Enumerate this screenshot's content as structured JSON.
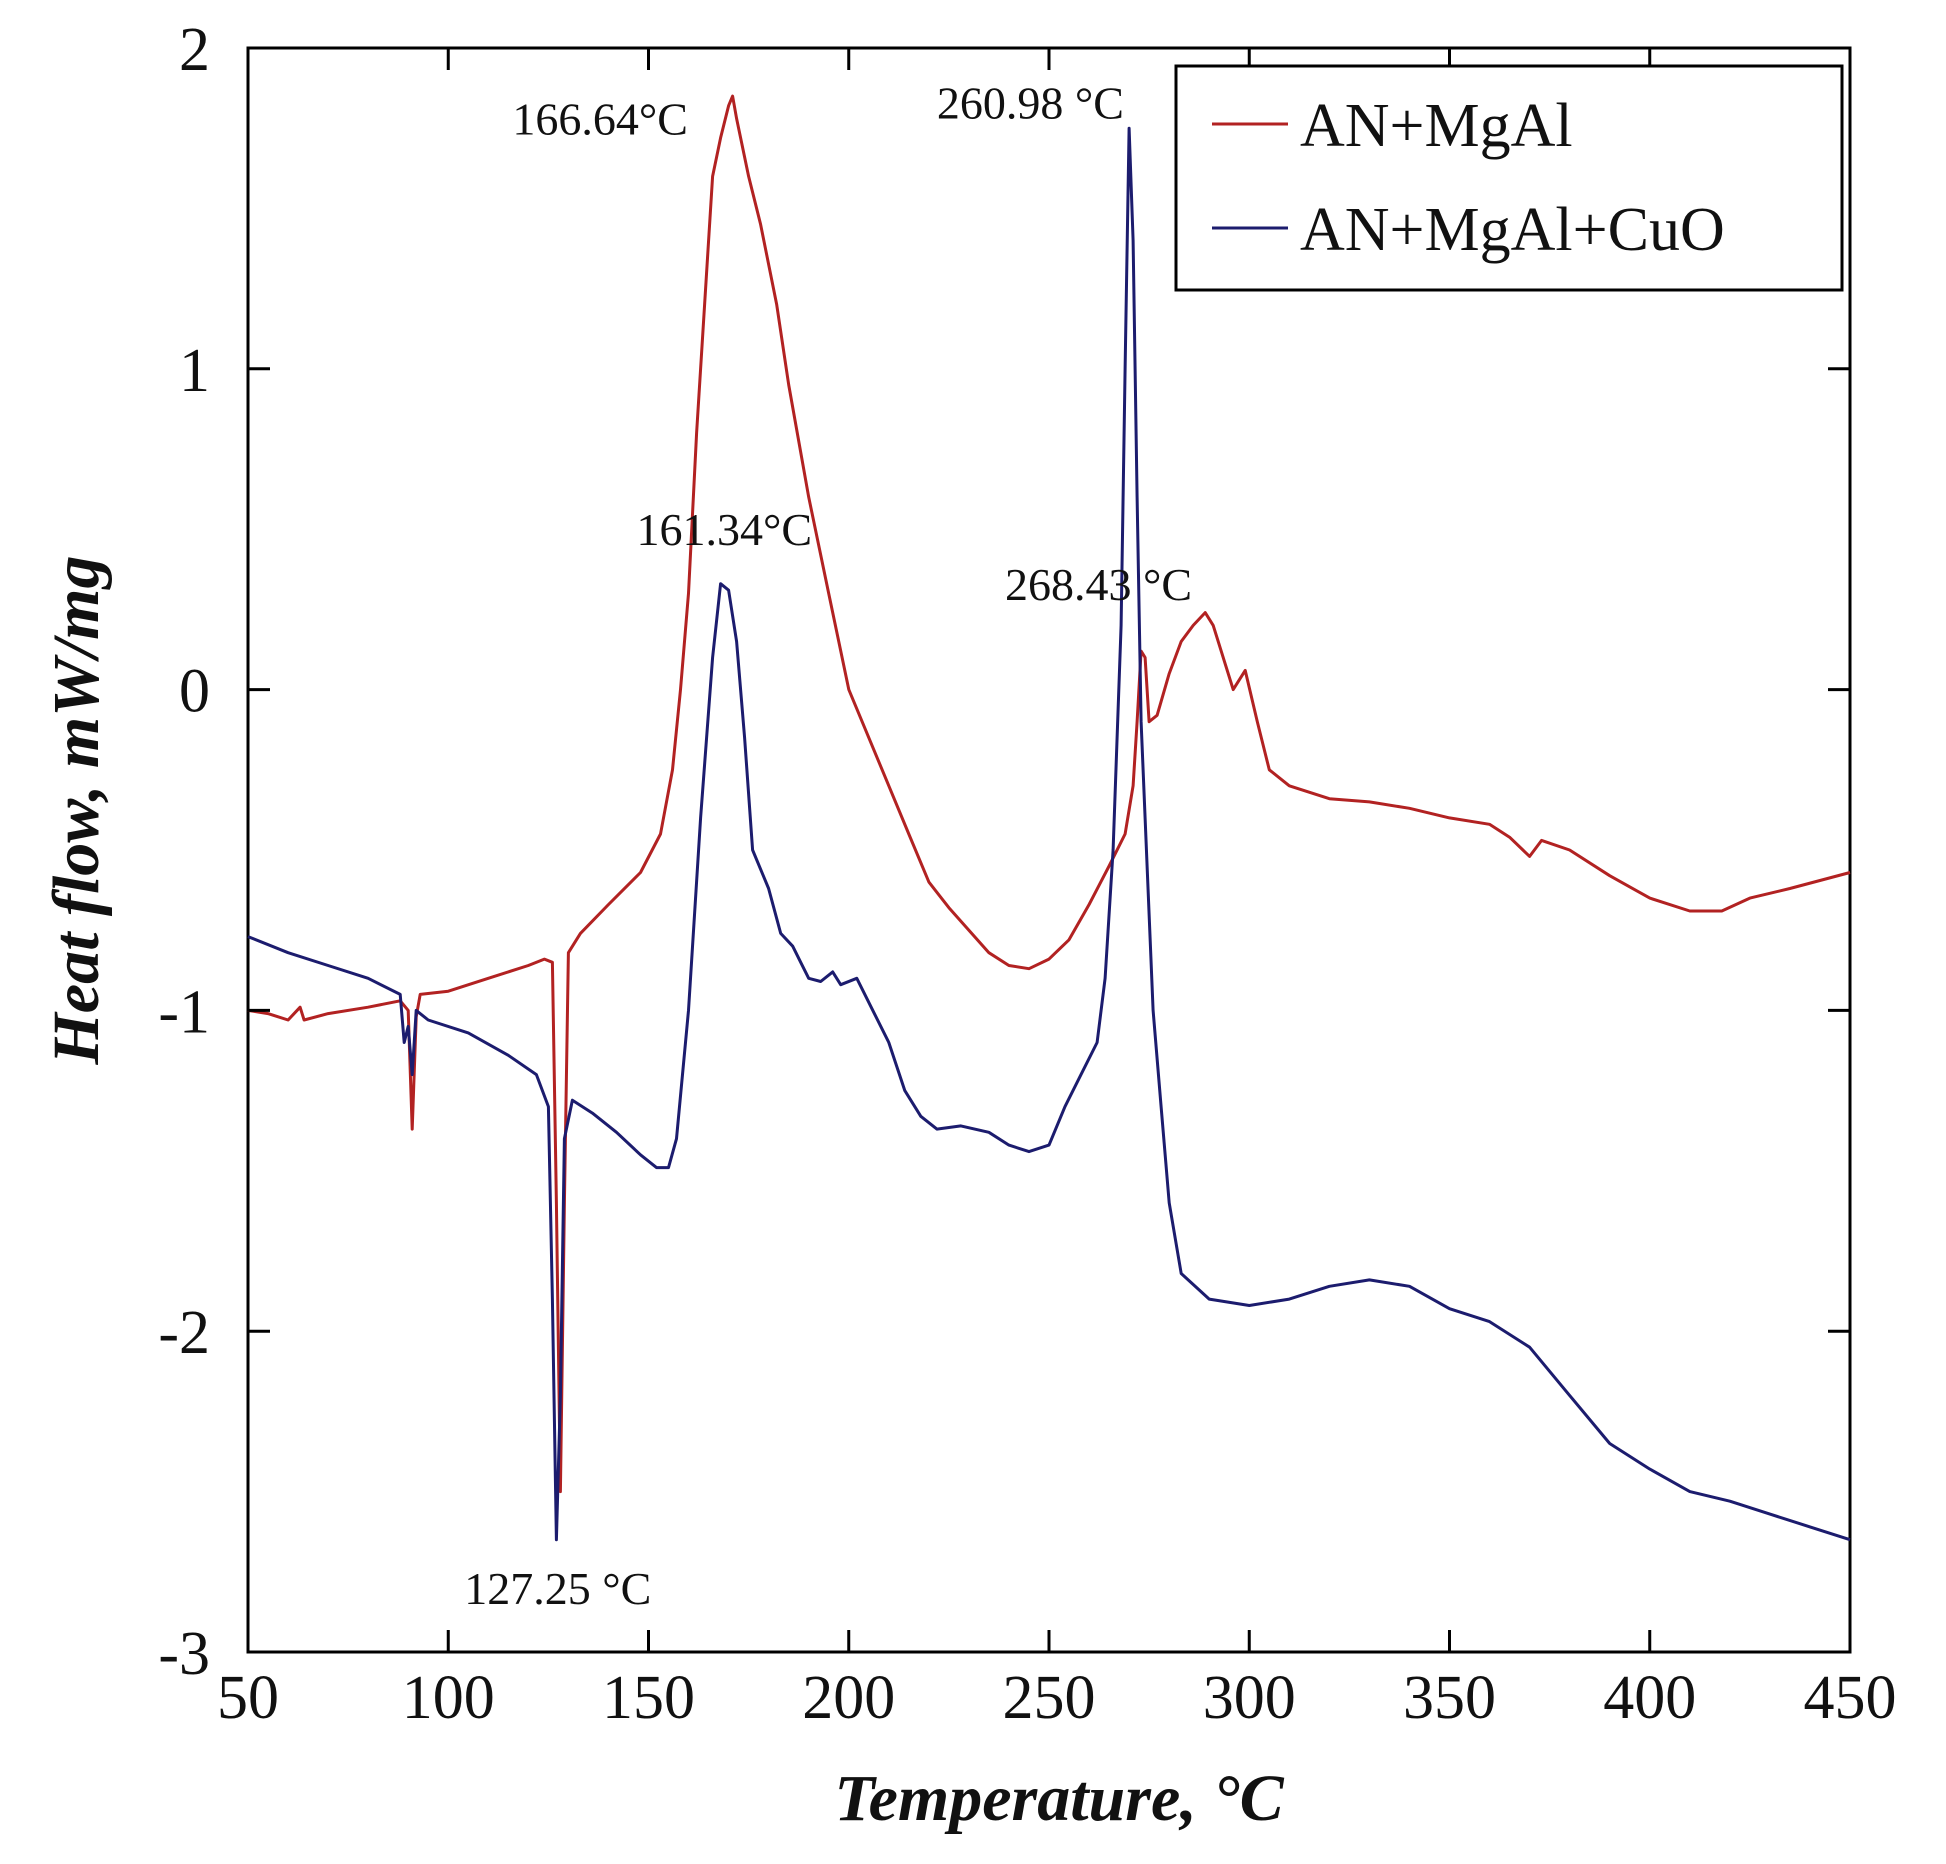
{
  "chart_data": {
    "type": "line",
    "xlabel": "Temperature, °C",
    "ylabel": "Heat flow, mW/mg",
    "xlim": [
      50,
      450
    ],
    "ylim": [
      -3,
      2
    ],
    "xticks": [
      50,
      100,
      150,
      200,
      250,
      300,
      350,
      400,
      450
    ],
    "yticks": [
      -3,
      -2,
      -1,
      0,
      1,
      2
    ],
    "xtick_labels": [
      "50",
      "100",
      "150",
      "200",
      "250",
      "300",
      "350",
      "400",
      "450"
    ],
    "ytick_labels": [
      "-3",
      "-2",
      "-1",
      "0",
      "1",
      "2"
    ],
    "legend_position": "top-right",
    "grid": false,
    "series": [
      {
        "name": "AN+MgAl",
        "color": "#b22222",
        "points": [
          [
            50,
            -1.0
          ],
          [
            55,
            -1.01
          ],
          [
            60,
            -1.03
          ],
          [
            63,
            -0.99
          ],
          [
            64,
            -1.03
          ],
          [
            70,
            -1.01
          ],
          [
            80,
            -0.99
          ],
          [
            88,
            -0.97
          ],
          [
            90,
            -1.0
          ],
          [
            91,
            -1.37
          ],
          [
            92,
            -1.02
          ],
          [
            93,
            -0.95
          ],
          [
            100,
            -0.94
          ],
          [
            110,
            -0.9
          ],
          [
            120,
            -0.86
          ],
          [
            124,
            -0.84
          ],
          [
            126,
            -0.85
          ],
          [
            127,
            -1.6
          ],
          [
            128,
            -2.5
          ],
          [
            129,
            -1.6
          ],
          [
            130,
            -0.82
          ],
          [
            133,
            -0.76
          ],
          [
            140,
            -0.67
          ],
          [
            148,
            -0.57
          ],
          [
            153,
            -0.45
          ],
          [
            156,
            -0.25
          ],
          [
            158,
            0.0
          ],
          [
            160,
            0.3
          ],
          [
            162,
            0.8
          ],
          [
            164,
            1.2
          ],
          [
            166,
            1.6
          ],
          [
            168,
            1.72
          ],
          [
            170,
            1.82
          ],
          [
            171,
            1.85
          ],
          [
            172,
            1.78
          ],
          [
            175,
            1.6
          ],
          [
            178,
            1.45
          ],
          [
            182,
            1.2
          ],
          [
            185,
            0.95
          ],
          [
            190,
            0.6
          ],
          [
            195,
            0.3
          ],
          [
            200,
            0.0
          ],
          [
            205,
            -0.15
          ],
          [
            210,
            -0.3
          ],
          [
            215,
            -0.45
          ],
          [
            220,
            -0.6
          ],
          [
            225,
            -0.68
          ],
          [
            230,
            -0.75
          ],
          [
            235,
            -0.82
          ],
          [
            240,
            -0.86
          ],
          [
            245,
            -0.87
          ],
          [
            250,
            -0.84
          ],
          [
            255,
            -0.78
          ],
          [
            260,
            -0.67
          ],
          [
            265,
            -0.55
          ],
          [
            269,
            -0.45
          ],
          [
            271,
            -0.3
          ],
          [
            272,
            -0.1
          ],
          [
            273,
            0.12
          ],
          [
            274,
            0.1
          ],
          [
            275,
            -0.1
          ],
          [
            277,
            -0.08
          ],
          [
            280,
            0.05
          ],
          [
            283,
            0.15
          ],
          [
            286,
            0.2
          ],
          [
            289,
            0.24
          ],
          [
            291,
            0.2
          ],
          [
            294,
            0.08
          ],
          [
            296,
            0.0
          ],
          [
            299,
            0.06
          ],
          [
            302,
            -0.1
          ],
          [
            305,
            -0.25
          ],
          [
            310,
            -0.3
          ],
          [
            320,
            -0.34
          ],
          [
            330,
            -0.35
          ],
          [
            340,
            -0.37
          ],
          [
            350,
            -0.4
          ],
          [
            360,
            -0.42
          ],
          [
            365,
            -0.46
          ],
          [
            370,
            -0.52
          ],
          [
            373,
            -0.47
          ],
          [
            380,
            -0.5
          ],
          [
            390,
            -0.58
          ],
          [
            400,
            -0.65
          ],
          [
            410,
            -0.69
          ],
          [
            418,
            -0.69
          ],
          [
            425,
            -0.65
          ],
          [
            435,
            -0.62
          ],
          [
            450,
            -0.57
          ]
        ]
      },
      {
        "name": "AN+MgAl+CuO",
        "color": "#1c1c6e",
        "points": [
          [
            50,
            -0.77
          ],
          [
            60,
            -0.82
          ],
          [
            70,
            -0.86
          ],
          [
            80,
            -0.9
          ],
          [
            88,
            -0.95
          ],
          [
            89,
            -1.1
          ],
          [
            90,
            -1.05
          ],
          [
            91,
            -1.2
          ],
          [
            92,
            -1.0
          ],
          [
            95,
            -1.03
          ],
          [
            105,
            -1.07
          ],
          [
            115,
            -1.14
          ],
          [
            122,
            -1.2
          ],
          [
            125,
            -1.3
          ],
          [
            126,
            -1.9
          ],
          [
            127,
            -2.65
          ],
          [
            128,
            -2.2
          ],
          [
            129,
            -1.4
          ],
          [
            131,
            -1.28
          ],
          [
            136,
            -1.32
          ],
          [
            142,
            -1.38
          ],
          [
            148,
            -1.45
          ],
          [
            152,
            -1.49
          ],
          [
            155,
            -1.49
          ],
          [
            157,
            -1.4
          ],
          [
            160,
            -1.0
          ],
          [
            163,
            -0.4
          ],
          [
            166,
            0.1
          ],
          [
            168,
            0.33
          ],
          [
            170,
            0.31
          ],
          [
            172,
            0.15
          ],
          [
            174,
            -0.15
          ],
          [
            176,
            -0.5
          ],
          [
            180,
            -0.62
          ],
          [
            183,
            -0.76
          ],
          [
            186,
            -0.8
          ],
          [
            188,
            -0.85
          ],
          [
            190,
            -0.9
          ],
          [
            193,
            -0.91
          ],
          [
            196,
            -0.88
          ],
          [
            198,
            -0.92
          ],
          [
            202,
            -0.9
          ],
          [
            206,
            -1.0
          ],
          [
            210,
            -1.1
          ],
          [
            214,
            -1.25
          ],
          [
            218,
            -1.33
          ],
          [
            222,
            -1.37
          ],
          [
            228,
            -1.36
          ],
          [
            235,
            -1.38
          ],
          [
            240,
            -1.42
          ],
          [
            245,
            -1.44
          ],
          [
            250,
            -1.42
          ],
          [
            254,
            -1.3
          ],
          [
            258,
            -1.2
          ],
          [
            262,
            -1.1
          ],
          [
            264,
            -0.9
          ],
          [
            266,
            -0.5
          ],
          [
            268,
            0.2
          ],
          [
            269,
            1.0
          ],
          [
            270,
            1.75
          ],
          [
            271,
            1.4
          ],
          [
            272,
            0.6
          ],
          [
            273,
            -0.1
          ],
          [
            274,
            -0.4
          ],
          [
            276,
            -1.0
          ],
          [
            278,
            -1.3
          ],
          [
            280,
            -1.6
          ],
          [
            283,
            -1.82
          ],
          [
            290,
            -1.9
          ],
          [
            300,
            -1.92
          ],
          [
            310,
            -1.9
          ],
          [
            320,
            -1.86
          ],
          [
            330,
            -1.84
          ],
          [
            340,
            -1.86
          ],
          [
            350,
            -1.93
          ],
          [
            360,
            -1.97
          ],
          [
            370,
            -2.05
          ],
          [
            380,
            -2.2
          ],
          [
            390,
            -2.35
          ],
          [
            400,
            -2.43
          ],
          [
            410,
            -2.5
          ],
          [
            420,
            -2.53
          ],
          [
            430,
            -2.57
          ],
          [
            440,
            -2.61
          ],
          [
            450,
            -2.65
          ]
        ]
      }
    ],
    "annotations": [
      {
        "text": "166.64°C",
        "x": 116,
        "y": 1.73
      },
      {
        "text": "260.98 °C",
        "x": 222,
        "y": 1.78
      },
      {
        "text": "161.34°C",
        "x": 147,
        "y": 0.45
      },
      {
        "text": "268.43 °C",
        "x": 239,
        "y": 0.28
      },
      {
        "text": "127.25 °C",
        "x": 104,
        "y": -2.85
      }
    ]
  }
}
